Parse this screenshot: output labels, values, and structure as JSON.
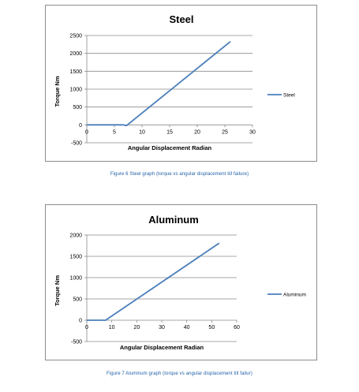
{
  "chart_data": [
    {
      "type": "line",
      "title": "Steel",
      "xlabel": "Angular Displacement Radian",
      "ylabel": "Torque Nm",
      "xlim": [
        0,
        30
      ],
      "ylim": [
        -500,
        2500
      ],
      "x_ticks": [
        "0",
        "5",
        "10",
        "15",
        "20",
        "25",
        "30"
      ],
      "y_ticks": [
        "2500",
        "2000",
        "1500",
        "1000",
        "500",
        "0",
        "-500"
      ],
      "grid": true,
      "legend_position": "right",
      "line_color": "#4a7ebb",
      "series": [
        {
          "name": "Steel",
          "points": [
            [
              0,
              0
            ],
            [
              6.5,
              0
            ],
            [
              7.2,
              -20
            ],
            [
              26,
              2330
            ]
          ]
        }
      ]
    },
    {
      "type": "line",
      "title": "Aluminum",
      "xlabel": "Angular Displacement Radian",
      "ylabel": "Torque Nm",
      "xlim": [
        0,
        60
      ],
      "ylim": [
        -500,
        2000
      ],
      "x_ticks": [
        "0",
        "10",
        "20",
        "30",
        "40",
        "50",
        "60"
      ],
      "y_ticks": [
        "2000",
        "1500",
        "1000",
        "500",
        "0",
        "-500"
      ],
      "grid": true,
      "legend_position": "right",
      "line_color": "#4a7ebb",
      "series": [
        {
          "name": "Aluminum",
          "points": [
            [
              0,
              0
            ],
            [
              6,
              0
            ],
            [
              7.5,
              0
            ],
            [
              53,
              1810
            ]
          ]
        }
      ]
    }
  ],
  "captions": {
    "steel": "Figure 6 Steel graph (torque vs angular displacement till failure)",
    "aluminum": "Figure 7 Aluminum graph (torque vs angular displacement till failur)"
  }
}
